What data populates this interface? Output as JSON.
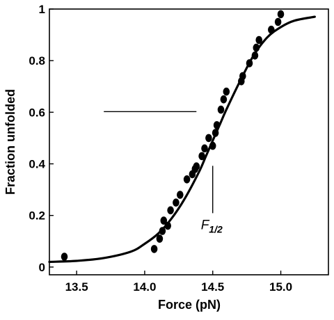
{
  "chart_data": {
    "type": "scatter",
    "title": "",
    "xlabel": "Force (pN)",
    "ylabel": "Fraction unfolded",
    "xlim": [
      13.3,
      15.35
    ],
    "ylim": [
      -0.03,
      1.0
    ],
    "x_ticks": [
      13.5,
      14.0,
      14.5,
      15.0
    ],
    "x_tick_labels": [
      "13.5",
      "14.0",
      "14.5",
      "15.0"
    ],
    "y_ticks": [
      0,
      0.2,
      0.4,
      0.6,
      0.8,
      1
    ],
    "y_tick_labels": [
      "0",
      "0.2",
      "0.4",
      "0.6",
      "0.8",
      "1"
    ],
    "grid": false,
    "legend": "none",
    "series": [
      {
        "kind": "points",
        "marker": "filled-circle",
        "x": [
          13.41,
          14.07,
          14.11,
          14.13,
          14.14,
          14.17,
          14.19,
          14.23,
          14.26,
          14.31,
          14.35,
          14.37,
          14.38,
          14.42,
          14.44,
          14.47,
          14.5,
          14.52,
          14.53,
          14.56,
          14.58,
          14.6,
          14.71,
          14.72,
          14.77,
          14.81,
          14.82,
          14.84,
          14.93,
          14.98,
          15.0
        ],
        "y": [
          0.04,
          0.07,
          0.11,
          0.14,
          0.18,
          0.16,
          0.22,
          0.25,
          0.28,
          0.34,
          0.36,
          0.38,
          0.39,
          0.43,
          0.46,
          0.5,
          0.47,
          0.52,
          0.55,
          0.61,
          0.65,
          0.68,
          0.72,
          0.74,
          0.79,
          0.82,
          0.85,
          0.88,
          0.92,
          0.95,
          0.98
        ]
      },
      {
        "kind": "fit-line",
        "x": [
          13.3,
          13.5,
          13.7,
          13.9,
          14.0,
          14.1,
          14.2,
          14.3,
          14.4,
          14.45,
          14.5,
          14.55,
          14.6,
          14.7,
          14.8,
          14.9,
          15.0,
          15.1,
          15.25
        ],
        "y": [
          0.02,
          0.024,
          0.035,
          0.06,
          0.09,
          0.13,
          0.19,
          0.27,
          0.37,
          0.43,
          0.49,
          0.55,
          0.61,
          0.72,
          0.82,
          0.89,
          0.93,
          0.955,
          0.97
        ]
      }
    ],
    "annotations": [
      {
        "label": "F",
        "subscript": "1/2",
        "x": 14.5
      },
      {
        "type": "horizontal-segment",
        "x_range": [
          13.7,
          14.38
        ],
        "y": 0.5
      }
    ]
  }
}
